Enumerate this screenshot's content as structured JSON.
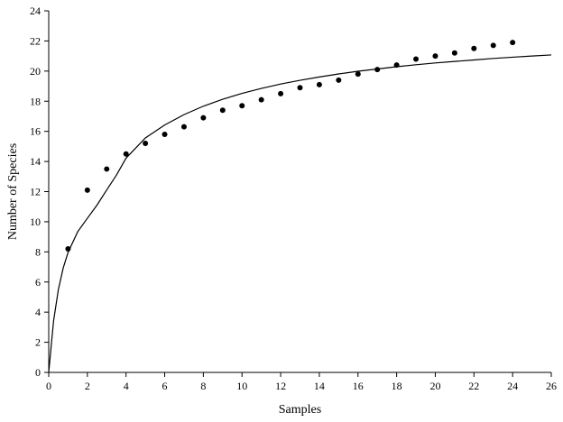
{
  "chart_data": {
    "type": "scatter",
    "title": "",
    "xlabel": "Samples",
    "ylabel": "Number of Species",
    "xlim": [
      0,
      26
    ],
    "ylim": [
      0,
      24
    ],
    "xticks": [
      0,
      2,
      4,
      6,
      8,
      10,
      12,
      14,
      16,
      18,
      20,
      22,
      24,
      26
    ],
    "yticks": [
      0,
      2,
      4,
      6,
      8,
      10,
      12,
      14,
      16,
      18,
      20,
      22,
      24
    ],
    "grid": false,
    "legend": "none",
    "series": [
      {
        "kind": "scatter",
        "color": "#000000",
        "x": [
          1,
          2,
          3,
          4,
          5,
          6,
          7,
          8,
          9,
          10,
          11,
          12,
          13,
          14,
          15,
          16,
          17,
          18,
          19,
          20,
          21,
          22,
          23,
          24
        ],
        "y": [
          8.2,
          12.1,
          13.5,
          14.5,
          15.2,
          15.8,
          16.3,
          16.9,
          17.4,
          17.7,
          18.1,
          18.5,
          18.9,
          19.1,
          19.4,
          19.8,
          20.1,
          20.4,
          20.8,
          21.0,
          21.2,
          21.5,
          21.7,
          21.9
        ]
      },
      {
        "kind": "line",
        "color": "#000000",
        "x": [
          0,
          0.25,
          0.5,
          0.75,
          1,
          1.5,
          2,
          2.5,
          3,
          3.5,
          4,
          5,
          6,
          7,
          8,
          9,
          10,
          11,
          12,
          13,
          14,
          15,
          16,
          17,
          18,
          19,
          20,
          21,
          22,
          23,
          24,
          25,
          26
        ],
        "y": [
          0,
          3.41,
          5.51,
          6.93,
          7.96,
          9.34,
          10.23,
          11.11,
          12.11,
          13.09,
          14.22,
          15.56,
          16.42,
          17.11,
          17.67,
          18.13,
          18.52,
          18.85,
          19.14,
          19.39,
          19.61,
          19.81,
          19.99,
          20.14,
          20.29,
          20.42,
          20.54,
          20.64,
          20.74,
          20.84,
          20.92,
          21.0,
          21.07
        ]
      }
    ]
  }
}
